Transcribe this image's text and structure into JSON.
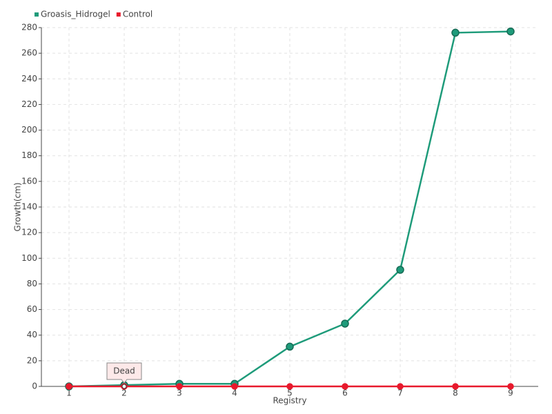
{
  "chart_data": {
    "type": "line",
    "x_label": "Registry",
    "y_label": "Growth(cm)",
    "categories": [
      "1",
      "2",
      "3",
      "4",
      "5",
      "6",
      "7",
      "8",
      "9"
    ],
    "series": [
      {
        "name": "Groasis_Hidrogel",
        "color": "#1e9b7a",
        "values": [
          0,
          1,
          2,
          2,
          31,
          49,
          91,
          276,
          277
        ]
      },
      {
        "name": "Control",
        "color": "#e8192c",
        "values": [
          0,
          0,
          0,
          0,
          0,
          0,
          0,
          0,
          0
        ]
      }
    ],
    "annotations": [
      {
        "text": "Dead",
        "series": "Control",
        "category": "2"
      }
    ],
    "ylim": [
      0,
      280
    ],
    "yticks": [
      0,
      20,
      40,
      60,
      80,
      100,
      120,
      140,
      160,
      180,
      200,
      220,
      240,
      260,
      280
    ],
    "grid": true,
    "legend": "top-left"
  }
}
